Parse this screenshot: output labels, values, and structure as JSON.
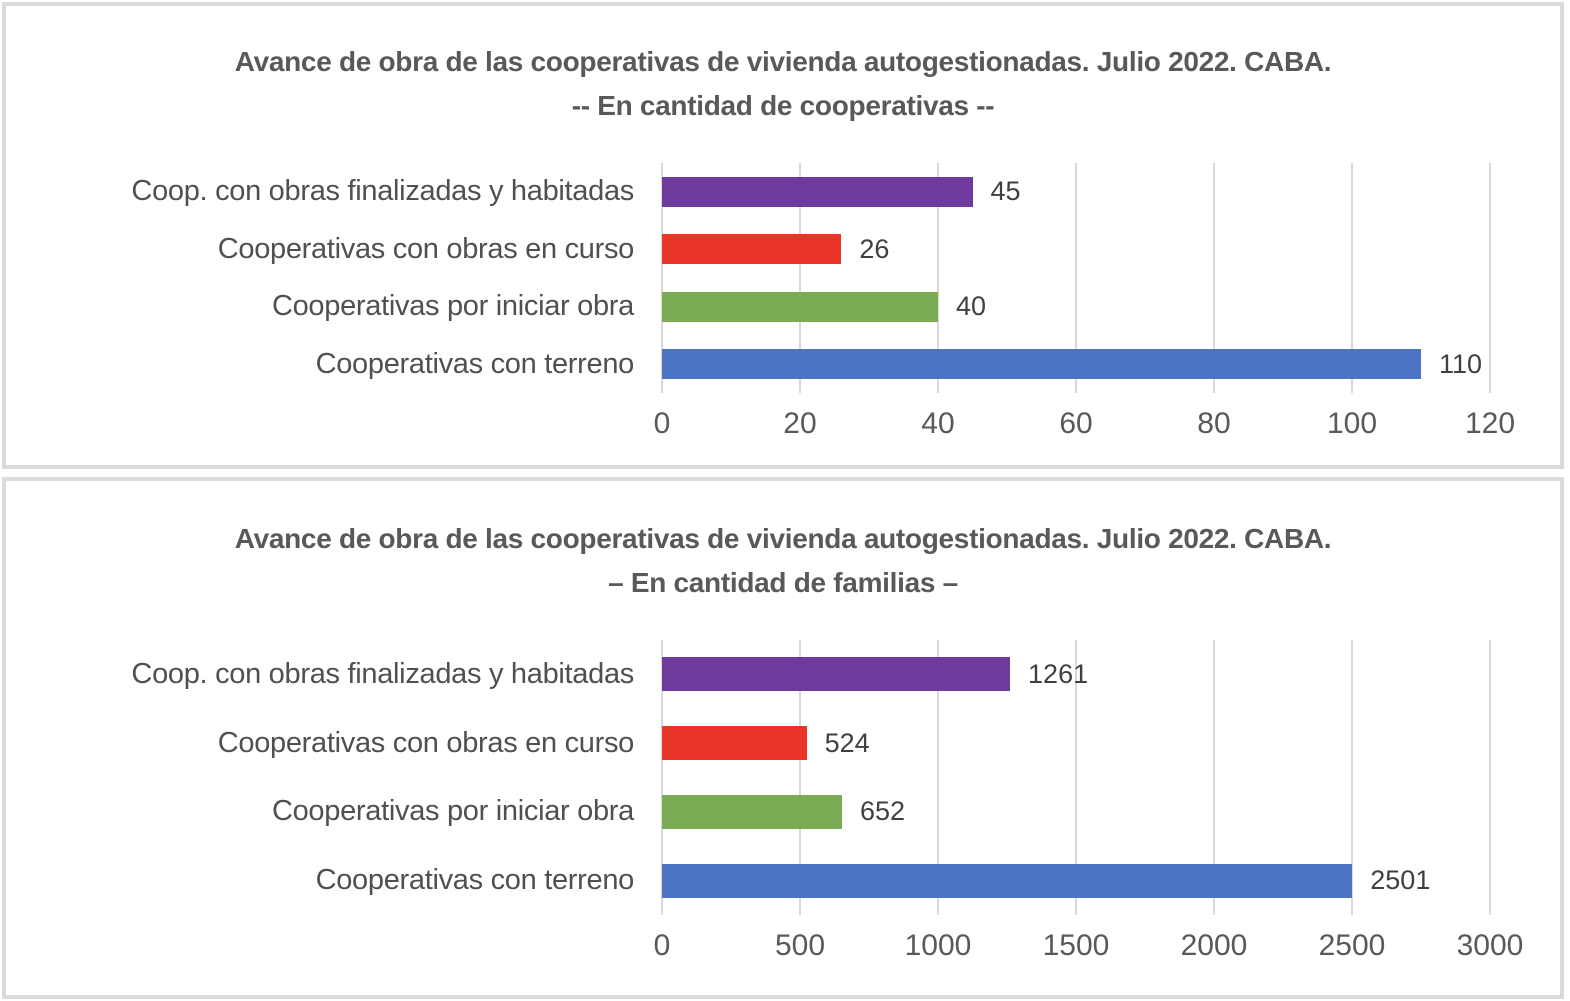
{
  "colors": {
    "panel_border": "#dbdbdb",
    "grid": "#d9d9d9",
    "title_text": "#595959",
    "category_text": "#505050",
    "value_text": "#404040",
    "tick_text": "#595959",
    "bar_purple": "#6f3a9e",
    "bar_red": "#e93428",
    "bar_green": "#7bac55",
    "bar_blue": "#4c73c4"
  },
  "chart_data": [
    {
      "type": "bar",
      "orientation": "horizontal",
      "title": "Avance de obra de las cooperativas de vivienda autogestionadas. Julio 2022. CABA.",
      "subtitle": "-- En cantidad de cooperativas --",
      "categories": [
        "Coop. con obras finalizadas y habitadas",
        "Cooperativas con obras en curso",
        "Cooperativas por iniciar obra",
        "Cooperativas con terreno"
      ],
      "values": [
        45,
        26,
        40,
        110
      ],
      "bar_colors": [
        "#6f3a9e",
        "#e93428",
        "#7bac55",
        "#4c73c4"
      ],
      "data_labels": [
        45,
        26,
        40,
        110
      ],
      "xlabel": "",
      "ylabel": "",
      "xlim": [
        0,
        120
      ],
      "xticks": [
        0,
        20,
        40,
        60,
        80,
        100,
        120
      ],
      "grid": true,
      "legend": false
    },
    {
      "type": "bar",
      "orientation": "horizontal",
      "title": "Avance de obra de las cooperativas de vivienda autogestionadas. Julio 2022. CABA.",
      "subtitle": "– En cantidad de familias –",
      "categories": [
        "Coop. con obras finalizadas y habitadas",
        "Cooperativas con obras en curso",
        "Cooperativas por iniciar obra",
        "Cooperativas con terreno"
      ],
      "values": [
        1261,
        524,
        652,
        2501
      ],
      "bar_colors": [
        "#6f3a9e",
        "#e93428",
        "#7bac55",
        "#4c73c4"
      ],
      "data_labels": [
        1261,
        524,
        652,
        2501
      ],
      "xlabel": "",
      "ylabel": "",
      "xlim": [
        0,
        3000
      ],
      "xticks": [
        0,
        500,
        1000,
        1500,
        2000,
        2500,
        3000
      ],
      "grid": true,
      "legend": false
    }
  ]
}
